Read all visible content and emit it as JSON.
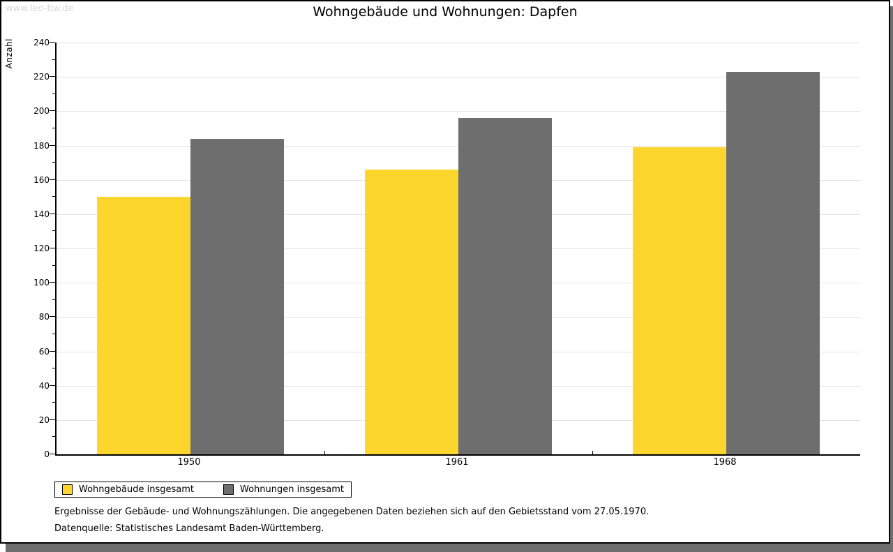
{
  "watermark": "www.leo-bw.de",
  "chart_data": {
    "type": "bar",
    "title": "Wohngebäude und Wohnungen: Dapfen",
    "ylabel": "Anzahl",
    "categories": [
      "1950",
      "1961",
      "1968"
    ],
    "series": [
      {
        "name": "Wohngebäude insgesamt",
        "color": "#FCD62D",
        "values": [
          150,
          166,
          179
        ]
      },
      {
        "name": "Wohnungen insgesamt",
        "color": "#6E6E6E",
        "values": [
          184,
          196,
          223
        ]
      }
    ],
    "ylim": [
      0,
      240
    ],
    "ytick_step": 20,
    "ytick_minor_step": 10,
    "grid": true,
    "legend_position": "bottom-left"
  },
  "footnotes": {
    "line1": "Ergebnisse der Gebäude- und Wohnungszählungen. Die angegebenen Daten beziehen sich auf den Gebietsstand vom 27.05.1970.",
    "line2": "Datenquelle: Statistisches Landesamt Baden-Württemberg."
  }
}
